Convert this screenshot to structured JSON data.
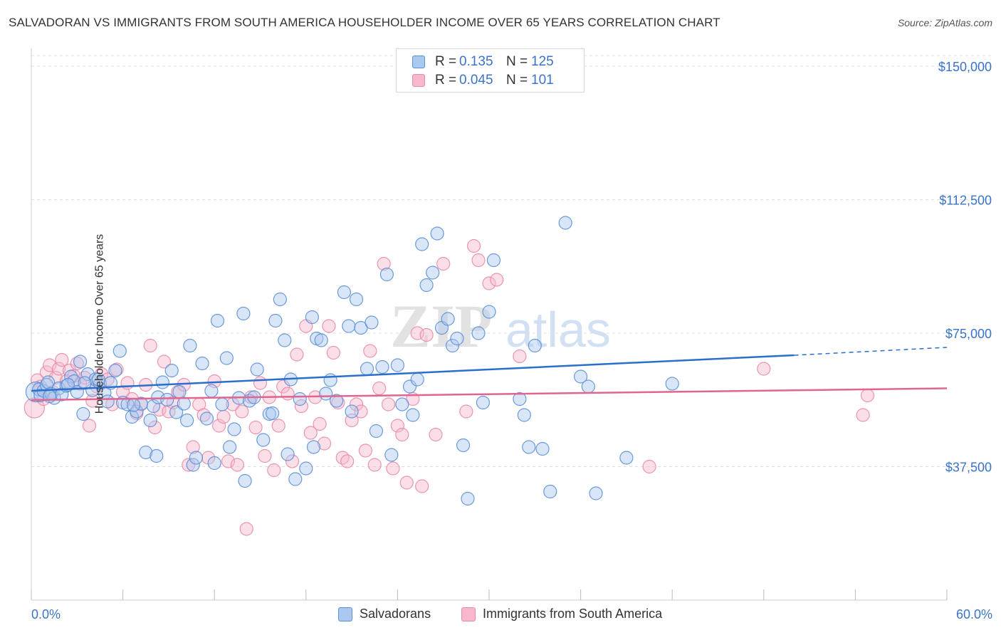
{
  "title": "SALVADORAN VS IMMIGRANTS FROM SOUTH AMERICA HOUSEHOLDER INCOME OVER 65 YEARS CORRELATION CHART",
  "source": "Source: ZipAtlas.com",
  "legend_top": {
    "rows": [
      {
        "r_label": "R =",
        "r_value": "0.135",
        "n_label": "N =",
        "n_value": "125",
        "color": "#aac8f0"
      },
      {
        "r_label": "R =",
        "r_value": "0.045",
        "n_label": "N =",
        "n_value": "101",
        "color": "#f7b8cb"
      }
    ]
  },
  "legend_bottom": {
    "items": [
      {
        "label": "Salvadorans",
        "color": "#aac8f0"
      },
      {
        "label": "Immigrants from South America",
        "color": "#f7b8cb"
      }
    ]
  },
  "watermark": {
    "zip": "ZIP",
    "atlas": "atlas"
  },
  "colors": {
    "blue_fill": "#aac8f0",
    "blue_stroke": "#5b8fd6",
    "blue_line": "#2a6fcc",
    "pink_fill": "#f7b8cb",
    "pink_stroke": "#e98aa8",
    "pink_line": "#e06590",
    "tick_label": "#3a73c9",
    "grid": "#dddddd"
  },
  "chart_data": {
    "type": "scatter",
    "xlabel": "",
    "ylabel": "Householder Income Over 65 years",
    "xlim": [
      0,
      60
    ],
    "ylim": [
      0,
      153000
    ],
    "x_tick_labels": [
      {
        "value": 0,
        "label": "0.0%"
      },
      {
        "value": 60,
        "label": "60.0%"
      }
    ],
    "y_ticks": [
      {
        "value": 37500,
        "label": "$37,500"
      },
      {
        "value": 75000,
        "label": "$75,000"
      },
      {
        "value": 112500,
        "label": "$112,500"
      },
      {
        "value": 150000,
        "label": "$150,000"
      }
    ],
    "grid": true,
    "legend_position": "top-center",
    "series": [
      {
        "name": "Salvadorans",
        "trend": {
          "x_start": 0,
          "y_start": 58800,
          "x_solid_end": 50,
          "y_solid_end": 68800,
          "x_end": 60,
          "y_end": 71000
        },
        "points": [
          [
            0.3,
            58500
          ],
          [
            0.5,
            59200
          ],
          [
            0.6,
            57500
          ],
          [
            0.8,
            58800
          ],
          [
            1.0,
            60500
          ],
          [
            1.1,
            61200
          ],
          [
            1.3,
            58000
          ],
          [
            1.5,
            56800
          ],
          [
            1.8,
            59500
          ],
          [
            2.0,
            57800
          ],
          [
            2.3,
            60200
          ],
          [
            2.6,
            62800
          ],
          [
            2.8,
            61500
          ],
          [
            3.0,
            58500
          ],
          [
            3.2,
            67000
          ],
          [
            3.4,
            52300
          ],
          [
            3.7,
            63500
          ],
          [
            4.0,
            59000
          ],
          [
            4.2,
            62000
          ],
          [
            4.5,
            60800
          ],
          [
            4.8,
            58200
          ],
          [
            5.0,
            55800
          ],
          [
            5.2,
            61000
          ],
          [
            5.5,
            64500
          ],
          [
            5.8,
            70000
          ],
          [
            6.0,
            55500
          ],
          [
            6.3,
            55000
          ],
          [
            6.6,
            51500
          ],
          [
            6.9,
            53000
          ],
          [
            7.2,
            55200
          ],
          [
            7.5,
            41500
          ],
          [
            7.8,
            50500
          ],
          [
            8.0,
            54500
          ],
          [
            8.3,
            57000
          ],
          [
            8.6,
            61200
          ],
          [
            8.9,
            56300
          ],
          [
            9.2,
            64500
          ],
          [
            9.5,
            52800
          ],
          [
            9.7,
            58500
          ],
          [
            10.0,
            55200
          ],
          [
            10.4,
            71500
          ],
          [
            10.6,
            38000
          ],
          [
            10.8,
            40000
          ],
          [
            11.2,
            66500
          ],
          [
            11.5,
            51000
          ],
          [
            11.8,
            58800
          ],
          [
            12.2,
            78500
          ],
          [
            12.5,
            55000
          ],
          [
            12.8,
            68000
          ],
          [
            13.0,
            43000
          ],
          [
            13.3,
            48000
          ],
          [
            13.6,
            56800
          ],
          [
            13.9,
            80500
          ],
          [
            14.3,
            56000
          ],
          [
            14.6,
            57000
          ],
          [
            14.8,
            64800
          ],
          [
            15.2,
            45000
          ],
          [
            15.6,
            52300
          ],
          [
            16.0,
            78500
          ],
          [
            16.3,
            84500
          ],
          [
            16.6,
            73000
          ],
          [
            16.8,
            41000
          ],
          [
            17.0,
            62000
          ],
          [
            17.3,
            34000
          ],
          [
            17.6,
            56500
          ],
          [
            18.0,
            37000
          ],
          [
            18.4,
            79500
          ],
          [
            18.7,
            73500
          ],
          [
            19.0,
            73000
          ],
          [
            19.3,
            58000
          ],
          [
            19.6,
            61800
          ],
          [
            20.0,
            56000
          ],
          [
            20.5,
            86500
          ],
          [
            20.8,
            77000
          ],
          [
            21.3,
            84500
          ],
          [
            21.6,
            76500
          ],
          [
            22.0,
            65000
          ],
          [
            22.3,
            78000
          ],
          [
            22.6,
            47500
          ],
          [
            23.0,
            65500
          ],
          [
            23.3,
            91500
          ],
          [
            23.6,
            40800
          ],
          [
            24.0,
            66000
          ],
          [
            24.3,
            55000
          ],
          [
            24.8,
            60000
          ],
          [
            25.0,
            52000
          ],
          [
            25.3,
            62000
          ],
          [
            25.6,
            100000
          ],
          [
            25.9,
            88500
          ],
          [
            26.3,
            92000
          ],
          [
            26.6,
            103000
          ],
          [
            26.9,
            76500
          ],
          [
            27.3,
            79000
          ],
          [
            27.6,
            71500
          ],
          [
            27.9,
            73500
          ],
          [
            28.3,
            43500
          ],
          [
            28.6,
            28500
          ],
          [
            29.3,
            75000
          ],
          [
            29.6,
            55500
          ],
          [
            30.0,
            81000
          ],
          [
            30.3,
            95500
          ],
          [
            32.0,
            56500
          ],
          [
            32.3,
            52000
          ],
          [
            32.6,
            43000
          ],
          [
            33.0,
            71500
          ],
          [
            33.5,
            42500
          ],
          [
            34.0,
            30500
          ],
          [
            35.0,
            106000
          ],
          [
            36.0,
            62800
          ],
          [
            36.5,
            60000
          ],
          [
            37.0,
            30000
          ],
          [
            39.0,
            40000
          ],
          [
            42.0,
            60800
          ],
          [
            18.5,
            43000
          ],
          [
            12.0,
            38500
          ],
          [
            15.8,
            52500
          ],
          [
            21.0,
            53000
          ],
          [
            8.2,
            40500
          ],
          [
            10.2,
            50500
          ],
          [
            14.0,
            33500
          ],
          [
            3.5,
            61000
          ],
          [
            4.4,
            62000
          ],
          [
            1.2,
            57300
          ],
          [
            2.4,
            60500
          ],
          [
            6.7,
            54800
          ]
        ]
      },
      {
        "name": "Immigrants from South America",
        "trend": {
          "x_start": 0,
          "y_start": 56200,
          "x_end": 60,
          "y_end": 59500
        },
        "points": [
          [
            0.2,
            54000
          ],
          [
            0.4,
            61800
          ],
          [
            0.6,
            60000
          ],
          [
            0.8,
            56500
          ],
          [
            1.0,
            64000
          ],
          [
            1.2,
            66000
          ],
          [
            1.4,
            58500
          ],
          [
            1.6,
            62500
          ],
          [
            1.8,
            65000
          ],
          [
            2.0,
            67500
          ],
          [
            2.3,
            61500
          ],
          [
            2.5,
            64500
          ],
          [
            2.8,
            63000
          ],
          [
            3.0,
            66500
          ],
          [
            3.2,
            60800
          ],
          [
            3.5,
            62500
          ],
          [
            3.8,
            49000
          ],
          [
            4.0,
            56000
          ],
          [
            4.3,
            60000
          ],
          [
            4.6,
            63500
          ],
          [
            5.0,
            62000
          ],
          [
            5.3,
            55000
          ],
          [
            5.6,
            64800
          ],
          [
            6.0,
            58500
          ],
          [
            6.3,
            61000
          ],
          [
            6.6,
            56500
          ],
          [
            6.9,
            52500
          ],
          [
            7.2,
            55000
          ],
          [
            7.5,
            60500
          ],
          [
            7.8,
            71500
          ],
          [
            8.1,
            48500
          ],
          [
            8.4,
            53500
          ],
          [
            8.7,
            67000
          ],
          [
            9.0,
            53000
          ],
          [
            9.3,
            55500
          ],
          [
            9.6,
            58500
          ],
          [
            10.0,
            60500
          ],
          [
            10.3,
            38000
          ],
          [
            10.6,
            43000
          ],
          [
            11.0,
            55000
          ],
          [
            11.3,
            52000
          ],
          [
            11.6,
            40000
          ],
          [
            12.0,
            61500
          ],
          [
            12.3,
            49000
          ],
          [
            12.6,
            51500
          ],
          [
            12.9,
            39000
          ],
          [
            13.2,
            55000
          ],
          [
            13.5,
            38000
          ],
          [
            13.8,
            53000
          ],
          [
            14.1,
            20000
          ],
          [
            14.4,
            57000
          ],
          [
            14.7,
            48500
          ],
          [
            15.0,
            61000
          ],
          [
            15.3,
            40500
          ],
          [
            15.6,
            57000
          ],
          [
            15.9,
            36500
          ],
          [
            16.2,
            49000
          ],
          [
            16.5,
            60000
          ],
          [
            16.8,
            58000
          ],
          [
            17.1,
            39000
          ],
          [
            17.4,
            69000
          ],
          [
            17.7,
            54500
          ],
          [
            18.0,
            77000
          ],
          [
            18.3,
            47000
          ],
          [
            18.6,
            57000
          ],
          [
            18.9,
            49500
          ],
          [
            19.2,
            44000
          ],
          [
            19.5,
            77000
          ],
          [
            19.8,
            69500
          ],
          [
            20.1,
            55500
          ],
          [
            20.4,
            40000
          ],
          [
            20.7,
            39000
          ],
          [
            21.0,
            50500
          ],
          [
            21.3,
            55000
          ],
          [
            21.6,
            53000
          ],
          [
            21.9,
            42000
          ],
          [
            22.2,
            70000
          ],
          [
            22.5,
            38000
          ],
          [
            22.8,
            59500
          ],
          [
            23.1,
            94500
          ],
          [
            23.4,
            55000
          ],
          [
            23.7,
            37000
          ],
          [
            24.0,
            49000
          ],
          [
            24.3,
            46500
          ],
          [
            24.6,
            33000
          ],
          [
            25.0,
            56500
          ],
          [
            25.3,
            75000
          ],
          [
            25.6,
            32000
          ],
          [
            25.9,
            74500
          ],
          [
            26.5,
            46500
          ],
          [
            27.0,
            94500
          ],
          [
            28.5,
            53000
          ],
          [
            29.0,
            99500
          ],
          [
            29.3,
            95500
          ],
          [
            30.0,
            89000
          ],
          [
            30.5,
            90000
          ],
          [
            32.0,
            68500
          ],
          [
            40.5,
            37500
          ],
          [
            48.0,
            65000
          ],
          [
            54.5,
            52000
          ],
          [
            54.8,
            57500
          ]
        ]
      }
    ]
  }
}
